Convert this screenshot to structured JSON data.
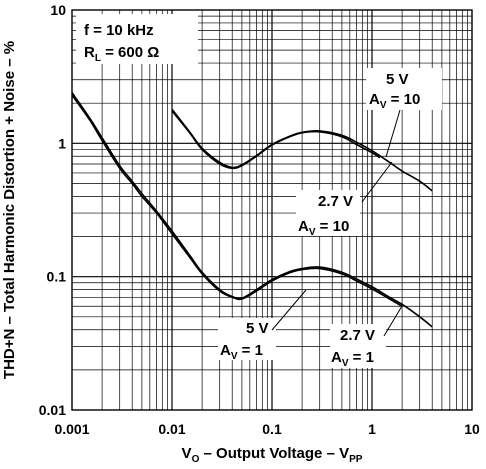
{
  "chart_data": {
    "type": "line",
    "x_scale": "log",
    "y_scale": "log",
    "xlim": [
      0.001,
      10
    ],
    "ylim": [
      0.01,
      10
    ],
    "grid": true,
    "x_ticks": [
      "0.001",
      "0.01",
      "0.1",
      "1",
      "10"
    ],
    "y_ticks": [
      "0.01",
      "0.1",
      "1",
      "10"
    ],
    "xlabel": {
      "main": "V",
      "sub": "O",
      "rest": " – Output Voltage – V",
      "sub2": "PP"
    },
    "ylabel": "THD+N – Total Harmonic Distortion + Noise – %",
    "conditions": {
      "line1": "f = 10 kHz",
      "line2_main": "R",
      "line2_sub": "L",
      "line2_rest": " = 600 Ω"
    },
    "series": [
      {
        "name": "5 V, AV = 10",
        "x": [
          0.01,
          0.015,
          0.02,
          0.03,
          0.04,
          0.05,
          0.07,
          0.1,
          0.15,
          0.2,
          0.3,
          0.5,
          0.7,
          1.0,
          1.2
        ],
        "y": [
          1.75,
          1.2,
          0.9,
          0.7,
          0.65,
          0.68,
          0.8,
          0.97,
          1.12,
          1.2,
          1.22,
          1.12,
          0.98,
          0.85,
          0.78
        ]
      },
      {
        "name": "2.7 V, AV = 10",
        "x": [
          0.01,
          0.015,
          0.02,
          0.03,
          0.04,
          0.05,
          0.07,
          0.1,
          0.15,
          0.2,
          0.3,
          0.5,
          0.7,
          1.0,
          1.5,
          2.0,
          3.0,
          4.0
        ],
        "y": [
          1.8,
          1.22,
          0.92,
          0.72,
          0.66,
          0.69,
          0.81,
          0.98,
          1.13,
          1.21,
          1.24,
          1.15,
          1.02,
          0.88,
          0.72,
          0.62,
          0.52,
          0.44
        ]
      },
      {
        "name": "5 V, AV = 1",
        "x": [
          0.001,
          0.0015,
          0.002,
          0.003,
          0.004,
          0.005,
          0.007,
          0.01,
          0.015,
          0.02,
          0.03,
          0.04,
          0.05,
          0.07,
          0.1,
          0.15,
          0.2,
          0.3,
          0.5,
          0.7,
          1.0,
          1.5,
          2.0
        ],
        "y": [
          2.3,
          1.5,
          1.05,
          0.65,
          0.5,
          0.4,
          0.3,
          0.21,
          0.14,
          0.105,
          0.078,
          0.07,
          0.068,
          0.078,
          0.093,
          0.107,
          0.113,
          0.115,
          0.105,
          0.093,
          0.081,
          0.068,
          0.06
        ]
      },
      {
        "name": "2.7 V, AV = 1",
        "x": [
          0.001,
          0.0015,
          0.002,
          0.003,
          0.004,
          0.005,
          0.007,
          0.01,
          0.015,
          0.02,
          0.03,
          0.04,
          0.05,
          0.07,
          0.1,
          0.15,
          0.2,
          0.3,
          0.5,
          0.7,
          1.0,
          1.5,
          2.0,
          3.0,
          4.0
        ],
        "y": [
          2.4,
          1.55,
          1.1,
          0.68,
          0.52,
          0.42,
          0.31,
          0.22,
          0.145,
          0.108,
          0.08,
          0.071,
          0.069,
          0.08,
          0.095,
          0.109,
          0.115,
          0.118,
          0.108,
          0.096,
          0.084,
          0.07,
          0.062,
          0.05,
          0.042
        ]
      }
    ],
    "annotations": [
      {
        "text": "5 V",
        "gain_main": "A",
        "gain_sub": "V",
        "gain_rest": " = 10"
      },
      {
        "text": "2.7 V",
        "gain_main": "A",
        "gain_sub": "V",
        "gain_rest": " = 10"
      },
      {
        "text": "5 V",
        "gain_main": "A",
        "gain_sub": "V",
        "gain_rest": " = 1"
      },
      {
        "text": "2.7 V",
        "gain_main": "A",
        "gain_sub": "V",
        "gain_rest": " = 1"
      }
    ]
  }
}
